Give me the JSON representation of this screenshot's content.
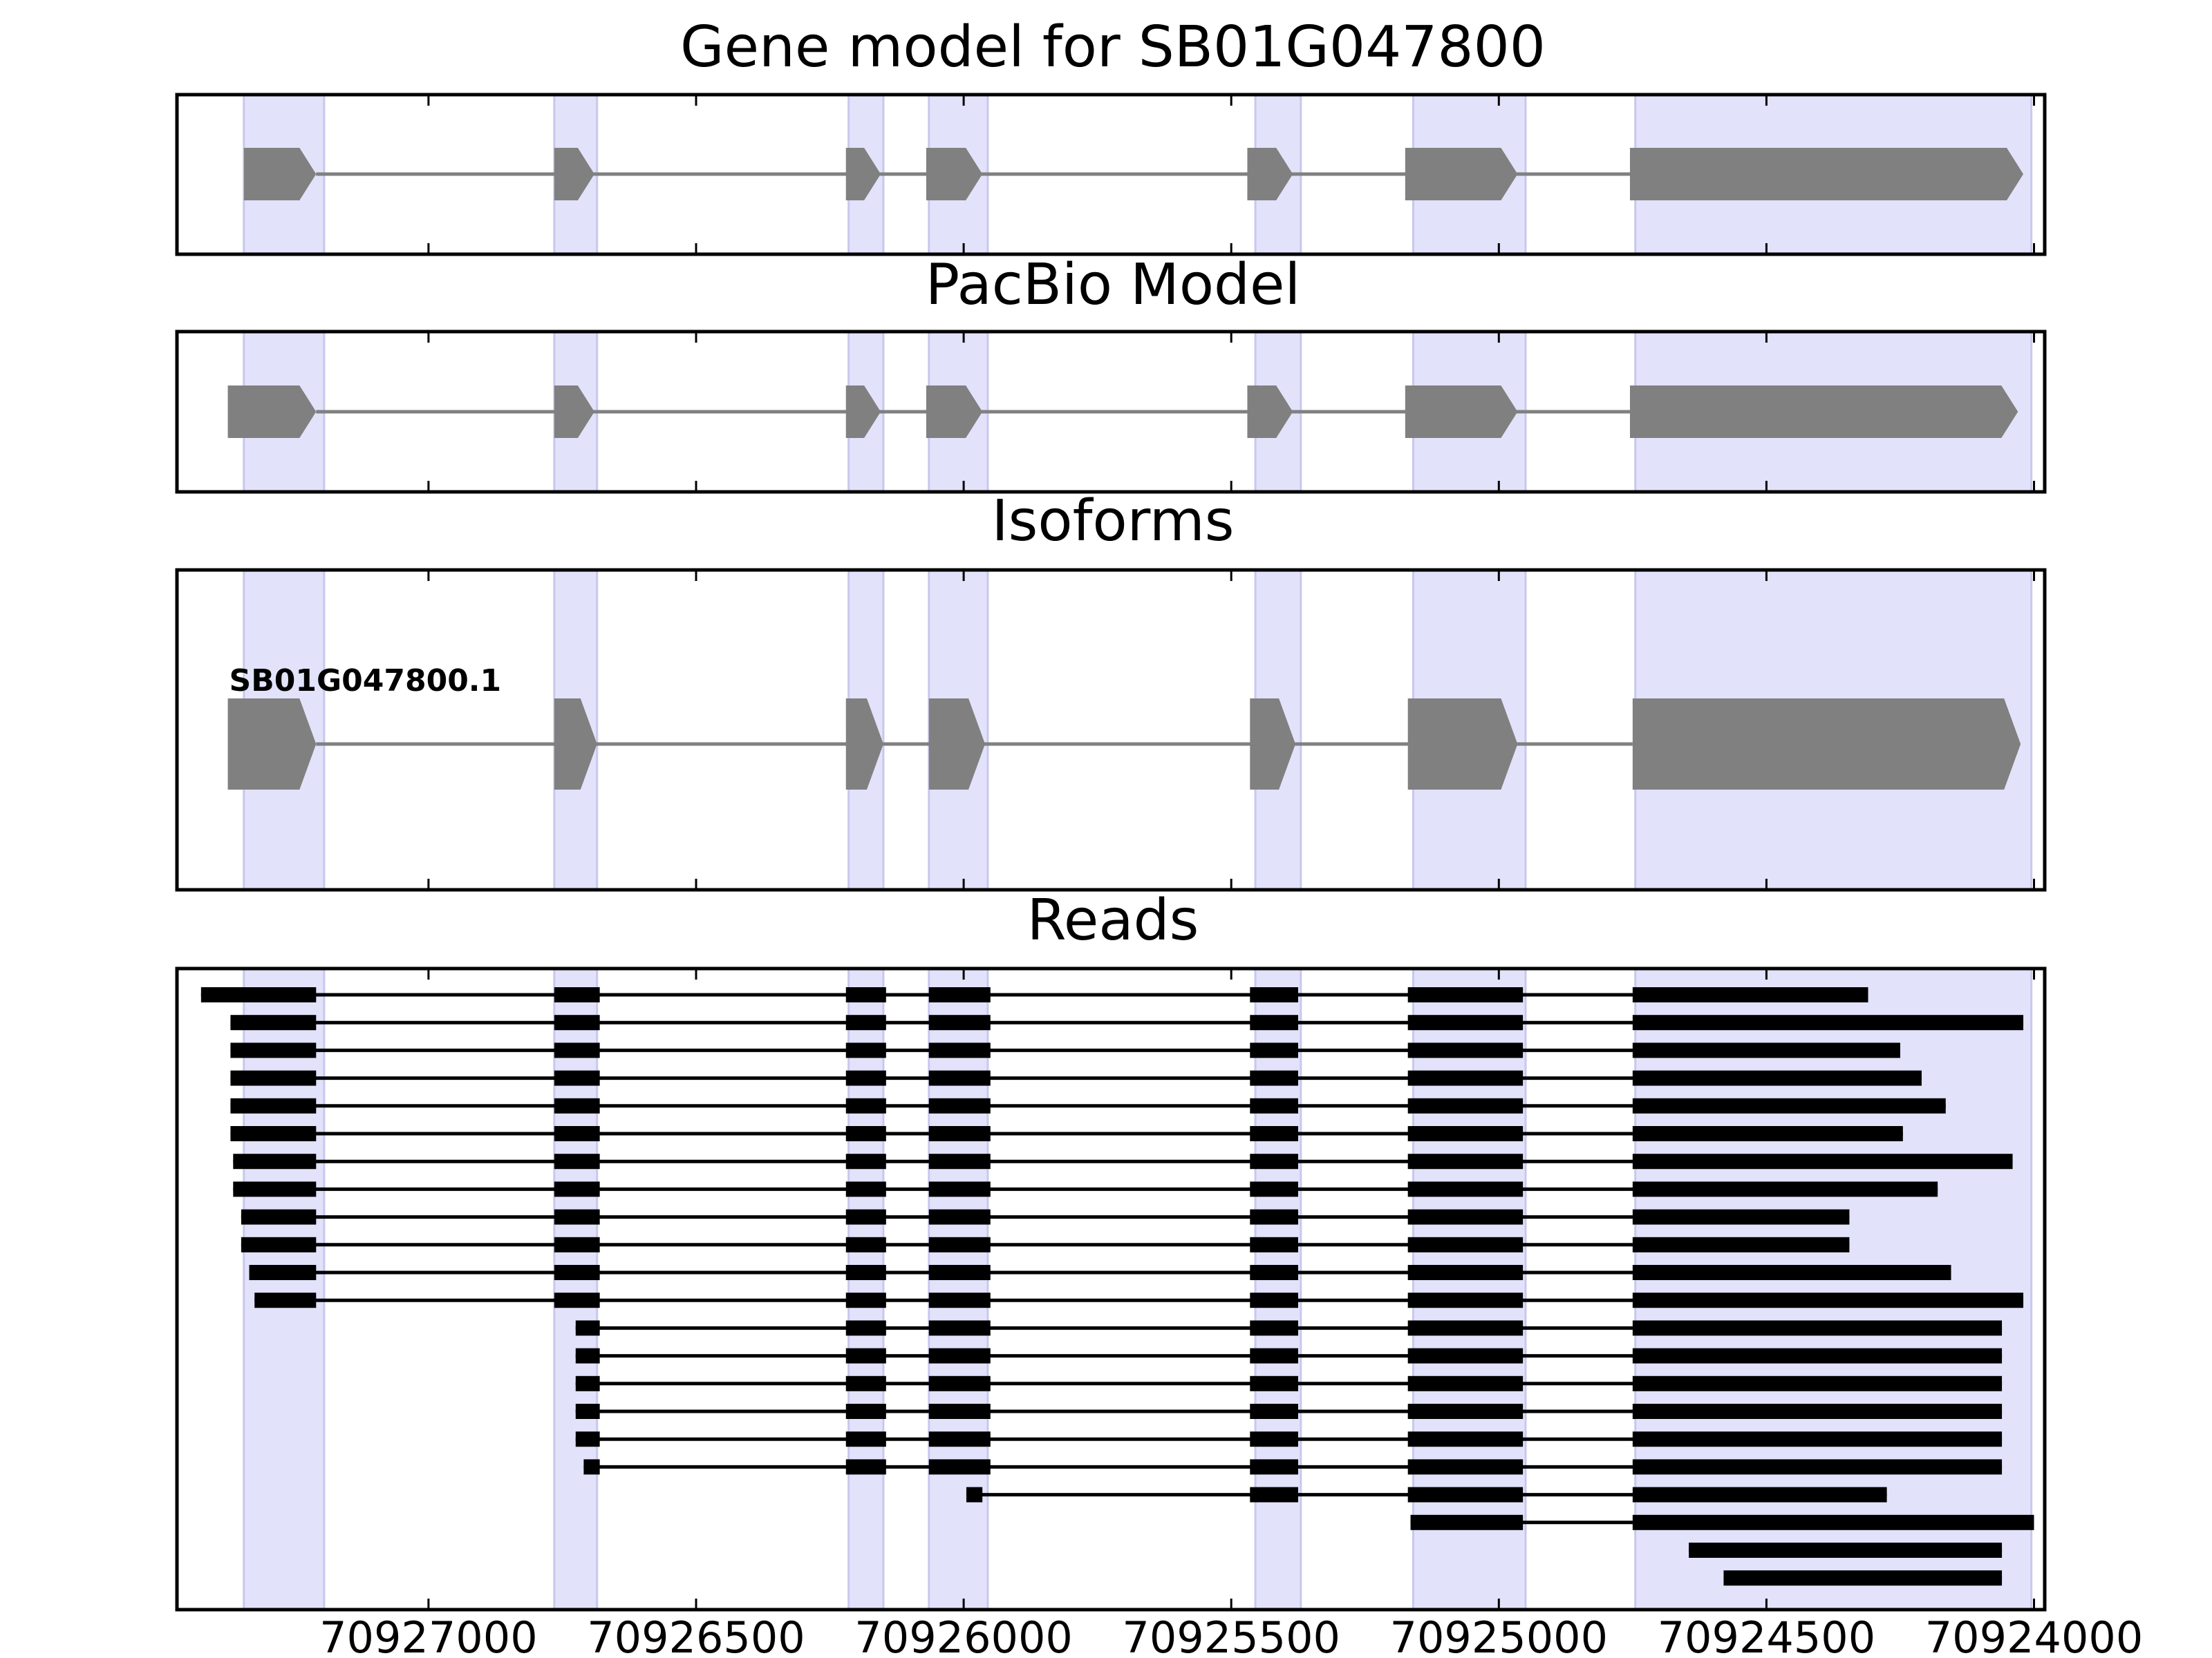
{
  "colors": {
    "exon_shade": "#e2e2fa",
    "model": "#808080",
    "read": "#000000",
    "axis": "#000000"
  },
  "chart_data": [
    {
      "type": "gene-track",
      "title": "Gene model for SB01G047800",
      "strand": "minus",
      "exons": [
        [
          70927345,
          70927210
        ],
        [
          70926765,
          70926690
        ],
        [
          70926220,
          70926155
        ],
        [
          70926070,
          70925965
        ],
        [
          70925470,
          70925385
        ],
        [
          70925175,
          70924965
        ],
        [
          70924755,
          70924020
        ]
      ]
    },
    {
      "type": "gene-track",
      "title": "PacBio Model",
      "strand": "minus",
      "exons": [
        [
          70927375,
          70927210
        ],
        [
          70926765,
          70926690
        ],
        [
          70926220,
          70926155
        ],
        [
          70926070,
          70925965
        ],
        [
          70925470,
          70925385
        ],
        [
          70925175,
          70924965
        ],
        [
          70924755,
          70924030
        ]
      ]
    },
    {
      "type": "gene-track",
      "title": "Isoforms",
      "strand": "minus",
      "isoforms": [
        {
          "label": "SB01G047800.1",
          "exons": [
            [
              70927375,
              70927210
            ],
            [
              70926765,
              70926685
            ],
            [
              70926220,
              70926150
            ],
            [
              70926065,
              70925960
            ],
            [
              70925465,
              70925380
            ],
            [
              70925170,
              70924965
            ],
            [
              70924750,
              70924025
            ]
          ]
        }
      ]
    },
    {
      "type": "read-track",
      "title": "Reads",
      "xlim": [
        70927470,
        70923980
      ],
      "xticks": [
        70927000,
        70926500,
        70926000,
        70925500,
        70925000,
        70924500,
        70924000
      ],
      "xticklabels": [
        "70927000",
        "70926500",
        "70926000",
        "70925500",
        "70925000",
        "70924500",
        "70924000"
      ],
      "shaded_exons": [
        [
          70927345,
          70927195
        ],
        [
          70926765,
          70926685
        ],
        [
          70926215,
          70926150
        ],
        [
          70926065,
          70925955
        ],
        [
          70925455,
          70925370
        ],
        [
          70925160,
          70924950
        ],
        [
          70924745,
          70924005
        ]
      ],
      "reads": [
        {
          "start": 70927425,
          "end": 70924310,
          "exons": [
            [
              70927425,
              70927210
            ],
            [
              70926765,
              70926680
            ],
            [
              70926220,
              70926145
            ],
            [
              70926065,
              70925950
            ],
            [
              70925465,
              70925375
            ],
            [
              70925170,
              70924955
            ],
            [
              70924750,
              70924310
            ]
          ]
        },
        {
          "start": 70927370,
          "end": 70924020,
          "exons": [
            [
              70927370,
              70927210
            ],
            [
              70926765,
              70926680
            ],
            [
              70926220,
              70926145
            ],
            [
              70926065,
              70925950
            ],
            [
              70925465,
              70925375
            ],
            [
              70925170,
              70924955
            ],
            [
              70924750,
              70924020
            ]
          ]
        },
        {
          "start": 70927370,
          "end": 70924250,
          "exons": [
            [
              70927370,
              70927210
            ],
            [
              70926765,
              70926680
            ],
            [
              70926220,
              70926145
            ],
            [
              70926065,
              70925950
            ],
            [
              70925465,
              70925375
            ],
            [
              70925170,
              70924955
            ],
            [
              70924750,
              70924250
            ]
          ]
        },
        {
          "start": 70927370,
          "end": 70924210,
          "exons": [
            [
              70927370,
              70927210
            ],
            [
              70926765,
              70926680
            ],
            [
              70926220,
              70926145
            ],
            [
              70926065,
              70925950
            ],
            [
              70925465,
              70925375
            ],
            [
              70925170,
              70924955
            ],
            [
              70924750,
              70924210
            ]
          ]
        },
        {
          "start": 70927370,
          "end": 70924165,
          "exons": [
            [
              70927370,
              70927210
            ],
            [
              70926765,
              70926680
            ],
            [
              70926220,
              70926145
            ],
            [
              70926065,
              70925950
            ],
            [
              70925465,
              70925375
            ],
            [
              70925170,
              70924955
            ],
            [
              70924750,
              70924165
            ]
          ]
        },
        {
          "start": 70927370,
          "end": 70924245,
          "exons": [
            [
              70927370,
              70927210
            ],
            [
              70926765,
              70926680
            ],
            [
              70926220,
              70926145
            ],
            [
              70926065,
              70925950
            ],
            [
              70925465,
              70925375
            ],
            [
              70925170,
              70924955
            ],
            [
              70924750,
              70924245
            ]
          ]
        },
        {
          "start": 70927365,
          "end": 70924040,
          "exons": [
            [
              70927365,
              70927210
            ],
            [
              70926765,
              70926680
            ],
            [
              70926220,
              70926145
            ],
            [
              70926065,
              70925950
            ],
            [
              70925465,
              70925375
            ],
            [
              70925170,
              70924955
            ],
            [
              70924750,
              70924040
            ]
          ]
        },
        {
          "start": 70927365,
          "end": 70924180,
          "exons": [
            [
              70927365,
              70927210
            ],
            [
              70926765,
              70926680
            ],
            [
              70926220,
              70926145
            ],
            [
              70926065,
              70925950
            ],
            [
              70925465,
              70925375
            ],
            [
              70925170,
              70924955
            ],
            [
              70924750,
              70924180
            ]
          ]
        },
        {
          "start": 70927350,
          "end": 70924345,
          "exons": [
            [
              70927350,
              70927210
            ],
            [
              70926765,
              70926680
            ],
            [
              70926220,
              70926145
            ],
            [
              70926065,
              70925950
            ],
            [
              70925465,
              70925375
            ],
            [
              70925170,
              70924955
            ],
            [
              70924750,
              70924345
            ]
          ]
        },
        {
          "start": 70927350,
          "end": 70924345,
          "exons": [
            [
              70927350,
              70927210
            ],
            [
              70926765,
              70926680
            ],
            [
              70926220,
              70926145
            ],
            [
              70926065,
              70925950
            ],
            [
              70925465,
              70925375
            ],
            [
              70925170,
              70924955
            ],
            [
              70924750,
              70924345
            ]
          ]
        },
        {
          "start": 70927335,
          "end": 70924155,
          "exons": [
            [
              70927335,
              70927210
            ],
            [
              70926765,
              70926680
            ],
            [
              70926220,
              70926145
            ],
            [
              70926065,
              70925950
            ],
            [
              70925465,
              70925375
            ],
            [
              70925170,
              70924955
            ],
            [
              70924750,
              70924155
            ]
          ]
        },
        {
          "start": 70927325,
          "end": 70924020,
          "exons": [
            [
              70927325,
              70927210
            ],
            [
              70926765,
              70926680
            ],
            [
              70926220,
              70926145
            ],
            [
              70926065,
              70925950
            ],
            [
              70925465,
              70925375
            ],
            [
              70925170,
              70924955
            ],
            [
              70924750,
              70924020
            ]
          ]
        },
        {
          "start": 70926725,
          "end": 70924060,
          "exons": [
            [
              70926725,
              70926680
            ],
            [
              70926220,
              70926145
            ],
            [
              70926065,
              70925950
            ],
            [
              70925465,
              70925375
            ],
            [
              70925170,
              70924955
            ],
            [
              70924750,
              70924060
            ]
          ]
        },
        {
          "start": 70926725,
          "end": 70924060,
          "exons": [
            [
              70926725,
              70926680
            ],
            [
              70926220,
              70926145
            ],
            [
              70926065,
              70925950
            ],
            [
              70925465,
              70925375
            ],
            [
              70925170,
              70924955
            ],
            [
              70924750,
              70924060
            ]
          ]
        },
        {
          "start": 70926725,
          "end": 70924060,
          "exons": [
            [
              70926725,
              70926680
            ],
            [
              70926220,
              70926145
            ],
            [
              70926065,
              70925950
            ],
            [
              70925465,
              70925375
            ],
            [
              70925170,
              70924955
            ],
            [
              70924750,
              70924060
            ]
          ]
        },
        {
          "start": 70926725,
          "end": 70924060,
          "exons": [
            [
              70926725,
              70926680
            ],
            [
              70926220,
              70926145
            ],
            [
              70926065,
              70925950
            ],
            [
              70925465,
              70925375
            ],
            [
              70925170,
              70924955
            ],
            [
              70924750,
              70924060
            ]
          ]
        },
        {
          "start": 70926725,
          "end": 70924060,
          "exons": [
            [
              70926725,
              70926680
            ],
            [
              70926220,
              70926145
            ],
            [
              70926065,
              70925950
            ],
            [
              70925465,
              70925375
            ],
            [
              70925170,
              70924955
            ],
            [
              70924750,
              70924060
            ]
          ]
        },
        {
          "start": 70926710,
          "end": 70924060,
          "exons": [
            [
              70926710,
              70926680
            ],
            [
              70926220,
              70926145
            ],
            [
              70926065,
              70925950
            ],
            [
              70925465,
              70925375
            ],
            [
              70925170,
              70924955
            ],
            [
              70924750,
              70924060
            ]
          ]
        },
        {
          "start": 70925995,
          "end": 70924275,
          "exons": [
            [
              70925995,
              70925965
            ],
            [
              70925465,
              70925375
            ],
            [
              70925170,
              70924955
            ],
            [
              70924750,
              70924275
            ]
          ]
        },
        {
          "start": 70925165,
          "end": 70924000,
          "exons": [
            [
              70925165,
              70924955
            ],
            [
              70924750,
              70924000
            ]
          ]
        },
        {
          "start": 70924645,
          "end": 70924060,
          "exons": [
            [
              70924645,
              70924060
            ]
          ]
        },
        {
          "start": 70924580,
          "end": 70924060,
          "exons": [
            [
              70924580,
              70924060
            ]
          ]
        }
      ]
    }
  ]
}
